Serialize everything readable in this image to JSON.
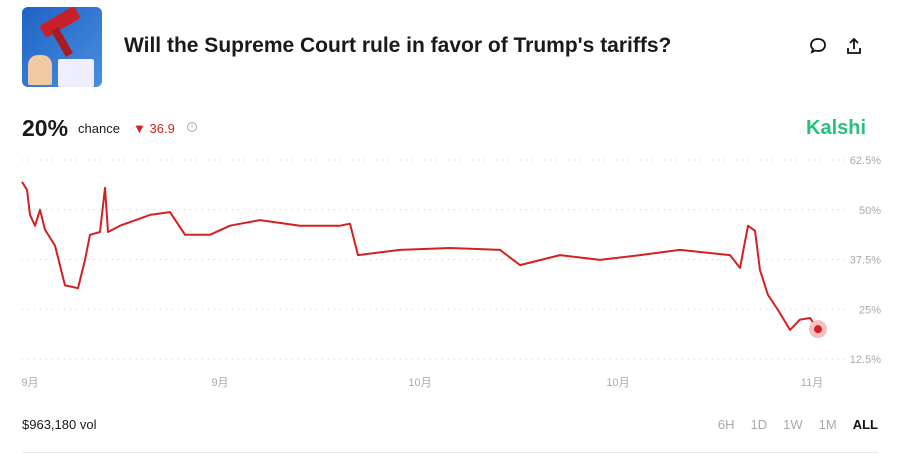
{
  "header": {
    "title": "Will the Supreme Court rule in favor of Trump's tariffs?",
    "icons": [
      "comment-icon",
      "share-icon"
    ]
  },
  "summary": {
    "percent": "20%",
    "chance_label": "chance",
    "delta": "36.9",
    "delta_direction": "down",
    "brand": "Kalshi"
  },
  "footer": {
    "volume": "$963,180 vol",
    "ranges": [
      "6H",
      "1D",
      "1W",
      "1M",
      "ALL"
    ],
    "active_range": "ALL"
  },
  "colors": {
    "line": "#d42020",
    "brand": "#27c07d",
    "delta": "#d42020"
  },
  "chart_data": {
    "type": "line",
    "ylim": [
      12.5,
      62.5
    ],
    "ytick_labels": [
      "62.5%",
      "50%",
      "37.5%",
      "25%",
      "12.5%"
    ],
    "yticks": [
      62.5,
      50,
      37.5,
      25,
      12.5
    ],
    "xtick_labels": [
      "9月",
      "9月",
      "10月",
      "10月",
      "11月"
    ],
    "grid": true,
    "x": [
      0,
      5,
      8,
      13,
      18,
      23,
      33,
      43,
      56,
      63,
      68,
      78,
      83,
      86,
      98,
      128,
      148,
      163,
      188,
      208,
      238,
      278,
      318,
      328,
      336,
      378,
      428,
      478,
      498,
      538,
      578,
      618,
      658,
      708,
      718,
      726,
      733,
      738,
      746,
      756,
      768,
      778,
      788,
      796
    ],
    "y": [
      57,
      55,
      48.7,
      46,
      50,
      45,
      41,
      31,
      30.3,
      37.4,
      43.7,
      44.4,
      55.5,
      44.4,
      46,
      48.7,
      49.4,
      43.7,
      43.7,
      46,
      47.4,
      46,
      46,
      46.5,
      38.6,
      39.9,
      40.4,
      39.9,
      36.1,
      38.6,
      37.4,
      38.6,
      39.9,
      38.6,
      35.4,
      46,
      44.7,
      34.8,
      28.6,
      24.8,
      19.8,
      22.4,
      22.8,
      20
    ]
  }
}
